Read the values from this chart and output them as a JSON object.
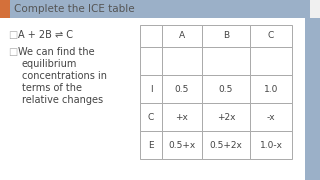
{
  "title": "Complete the ICE table",
  "bg_color": "#f0f0f0",
  "header_bar_color": "#9bb0c8",
  "orange_rect_color": "#d4703a",
  "right_stripe_color": "#9bb0c8",
  "bullet1": "A + 2B ⇌ C",
  "bullet2_lines": [
    "We can find the",
    "equilibrium",
    "concentrations in",
    "terms of the",
    "relative changes"
  ],
  "table_headers": [
    "",
    "A",
    "B",
    "C"
  ],
  "table_rows": [
    [
      "",
      "",
      "",
      ""
    ],
    [
      "I",
      "0.5",
      "0.5",
      "1.0"
    ],
    [
      "C",
      "+x",
      "+2x",
      "-x"
    ],
    [
      "E",
      "0.5+x",
      "0.5+2x",
      "1.0-x"
    ]
  ],
  "bullet_color": "#aaaaaa",
  "text_color": "#444444",
  "table_line_color": "#aaaaaa",
  "title_fontsize": 7.5,
  "bullet_fontsize": 7.0,
  "table_fontsize": 6.5
}
